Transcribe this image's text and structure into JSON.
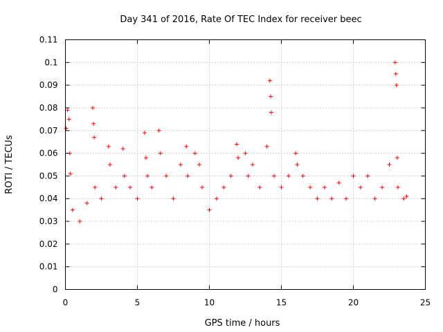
{
  "chart_data": {
    "type": "scatter",
    "title": "Day 341 of 2016, Rate Of TEC Index for receiver beec",
    "xlabel": "GPS time / hours",
    "ylabel": "ROTI / TECUs",
    "xlim": [
      0,
      25
    ],
    "ylim": [
      0,
      0.11
    ],
    "xticks": [
      0,
      5,
      10,
      15,
      20,
      25
    ],
    "xtick_labels": [
      "0",
      "5",
      "10",
      "15",
      "20",
      "25"
    ],
    "yticks": [
      0,
      0.01,
      0.02,
      0.03,
      0.04,
      0.05,
      0.06,
      0.07,
      0.08,
      0.09,
      0.1,
      0.11
    ],
    "ytick_labels": [
      "0",
      "0.01",
      "0.02",
      "0.03",
      "0.04",
      "0.05",
      "0.06",
      "0.07",
      "0.08",
      "0.09",
      "0.1",
      "0.11"
    ],
    "grid": true,
    "legend": "none",
    "marker": "plus",
    "color": "#ff0000",
    "series": [
      {
        "x": [
          0.05,
          0.15,
          0.25,
          0.3,
          0.35,
          0.5,
          1.0,
          1.5,
          1.9,
          1.95,
          2.0,
          2.05,
          2.5,
          3.0,
          3.1,
          3.5,
          4.0,
          4.1,
          4.5,
          5.0,
          5.5,
          5.6,
          5.7,
          6.0,
          6.5,
          6.6,
          7.0,
          7.5,
          8.0,
          8.4,
          8.5,
          9.0,
          9.3,
          9.5,
          10.0,
          10.5,
          11.0,
          11.5,
          11.9,
          12.0,
          12.5,
          12.7,
          13.0,
          13.5,
          14.0,
          14.2,
          14.25,
          14.3,
          14.5,
          15.0,
          15.5,
          16.0,
          16.1,
          16.5,
          17.0,
          17.5,
          18.0,
          18.5,
          19.0,
          19.5,
          20.0,
          20.5,
          21.0,
          21.5,
          22.0,
          22.5,
          22.9,
          22.95,
          23.0,
          23.05,
          23.1,
          23.5,
          23.7
        ],
        "y": [
          0.071,
          0.079,
          0.075,
          0.06,
          0.051,
          0.035,
          0.03,
          0.038,
          0.08,
          0.073,
          0.067,
          0.045,
          0.04,
          0.063,
          0.055,
          0.045,
          0.062,
          0.05,
          0.045,
          0.04,
          0.069,
          0.058,
          0.05,
          0.045,
          0.07,
          0.06,
          0.05,
          0.04,
          0.055,
          0.063,
          0.05,
          0.06,
          0.055,
          0.045,
          0.035,
          0.04,
          0.045,
          0.05,
          0.064,
          0.058,
          0.06,
          0.05,
          0.055,
          0.045,
          0.063,
          0.092,
          0.085,
          0.078,
          0.05,
          0.045,
          0.05,
          0.06,
          0.055,
          0.05,
          0.045,
          0.04,
          0.045,
          0.04,
          0.047,
          0.04,
          0.05,
          0.045,
          0.05,
          0.04,
          0.045,
          0.055,
          0.1,
          0.095,
          0.09,
          0.058,
          0.045,
          0.04,
          0.041
        ]
      }
    ]
  }
}
